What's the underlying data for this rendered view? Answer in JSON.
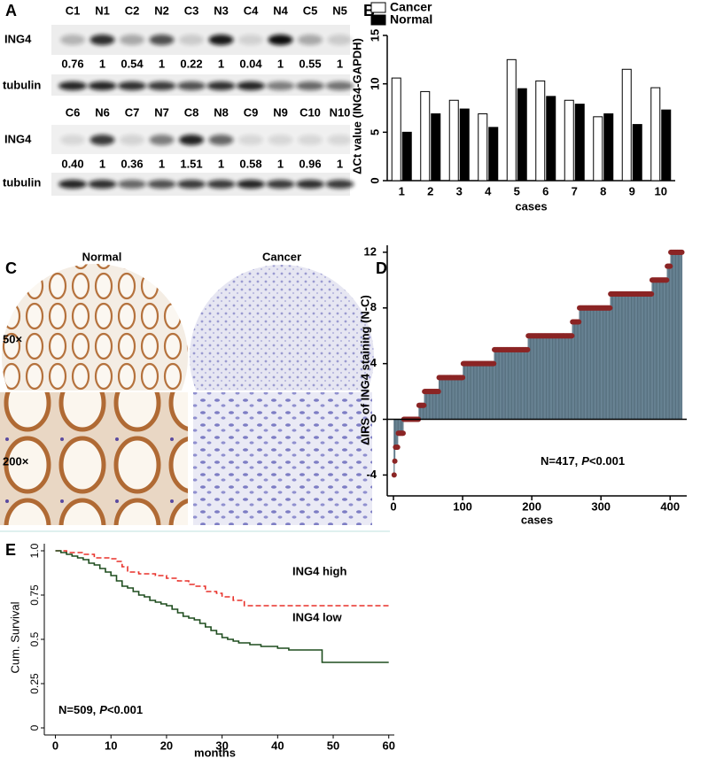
{
  "panel_labels": [
    "A",
    "B",
    "C",
    "D",
    "E"
  ],
  "blot": {
    "row_labels": [
      "ING4",
      "tubulin"
    ],
    "rows": [
      {
        "lanes": [
          "C1",
          "N1",
          "C2",
          "N2",
          "C3",
          "N3",
          "C4",
          "N4",
          "C5",
          "N5"
        ],
        "ratios": [
          "0.76",
          "1",
          "0.54",
          "1",
          "0.22",
          "1",
          "0.04",
          "1",
          "0.55",
          "1"
        ]
      },
      {
        "lanes": [
          "C6",
          "N6",
          "C7",
          "N7",
          "C8",
          "N8",
          "C9",
          "N9",
          "C10",
          "N10"
        ],
        "ratios": [
          "0.40",
          "1",
          "0.36",
          "1",
          "1.51",
          "1",
          "0.58",
          "1",
          "0.96",
          "1"
        ]
      }
    ]
  },
  "ihc": {
    "columns": [
      "Normal",
      "Cancer"
    ],
    "rows": [
      "50×",
      "200×"
    ]
  },
  "chart_data": [
    {
      "type": "bar",
      "ylabel": "ΔCt value (ING4-GAPDH)",
      "xlabel": "cases",
      "categories": [
        "1",
        "2",
        "3",
        "4",
        "5",
        "6",
        "7",
        "8",
        "9",
        "10"
      ],
      "series": [
        {
          "name": "Cancer",
          "color": "#ffffff",
          "values": [
            10.6,
            9.2,
            8.3,
            6.9,
            12.5,
            10.3,
            8.3,
            6.6,
            11.5,
            9.6
          ]
        },
        {
          "name": "Normal",
          "color": "#000000",
          "values": [
            5.0,
            6.9,
            7.4,
            5.5,
            9.5,
            8.7,
            7.9,
            6.9,
            5.8,
            7.3
          ]
        }
      ],
      "ylim": [
        0,
        15
      ],
      "yticks": [
        0,
        5,
        10,
        15
      ],
      "legend": "top-left"
    },
    {
      "type": "stem",
      "ylabel": "ΔIRS of ING4 staining (N-C)",
      "xlabel": "cases",
      "annotation": [
        "N=417,",
        "P",
        "<0.001"
      ],
      "color": "#7f9cae",
      "marker_color": "#8b2525",
      "xlim": [
        -9,
        424
      ],
      "xticks": [
        0,
        100,
        200,
        300,
        400
      ],
      "ylim": [
        -5.5,
        12.5
      ],
      "yticks": [
        -4,
        0,
        4,
        8,
        12
      ],
      "values": [
        -4,
        -3,
        -2,
        -2,
        -2,
        -2,
        -1,
        -1,
        -1,
        -1,
        -1,
        -1,
        -1,
        -1,
        0,
        0,
        0,
        0,
        0,
        0,
        0,
        0,
        0,
        0,
        0,
        0,
        0,
        0,
        0,
        0,
        0,
        0,
        0,
        0,
        0,
        0,
        1,
        1,
        1,
        1,
        1,
        1,
        1,
        1,
        2,
        2,
        2,
        2,
        2,
        2,
        2,
        2,
        2,
        2,
        2,
        2,
        2,
        2,
        2,
        2,
        2,
        2,
        2,
        2,
        2,
        3,
        3,
        3,
        3,
        3,
        3,
        3,
        3,
        3,
        3,
        3,
        3,
        3,
        3,
        3,
        3,
        3,
        3,
        3,
        3,
        3,
        3,
        3,
        3,
        3,
        3,
        3,
        3,
        3,
        3,
        3,
        3,
        3,
        3,
        3,
        4,
        4,
        4,
        4,
        4,
        4,
        4,
        4,
        4,
        4,
        4,
        4,
        4,
        4,
        4,
        4,
        4,
        4,
        4,
        4,
        4,
        4,
        4,
        4,
        4,
        4,
        4,
        4,
        4,
        4,
        4,
        4,
        4,
        4,
        4,
        4,
        4,
        4,
        4,
        4,
        4,
        4,
        4,
        4,
        4,
        5,
        5,
        5,
        5,
        5,
        5,
        5,
        5,
        5,
        5,
        5,
        5,
        5,
        5,
        5,
        5,
        5,
        5,
        5,
        5,
        5,
        5,
        5,
        5,
        5,
        5,
        5,
        5,
        5,
        5,
        5,
        5,
        5,
        5,
        5,
        5,
        5,
        5,
        5,
        5,
        5,
        5,
        5,
        5,
        5,
        5,
        5,
        5,
        5,
        6,
        6,
        6,
        6,
        6,
        6,
        6,
        6,
        6,
        6,
        6,
        6,
        6,
        6,
        6,
        6,
        6,
        6,
        6,
        6,
        6,
        6,
        6,
        6,
        6,
        6,
        6,
        6,
        6,
        6,
        6,
        6,
        6,
        6,
        6,
        6,
        6,
        6,
        6,
        6,
        6,
        6,
        6,
        6,
        6,
        6,
        6,
        6,
        6,
        6,
        6,
        6,
        6,
        6,
        6,
        6,
        6,
        6,
        6,
        6,
        6,
        6,
        6,
        6,
        7,
        7,
        7,
        7,
        7,
        7,
        7,
        7,
        7,
        7,
        8,
        8,
        8,
        8,
        8,
        8,
        8,
        8,
        8,
        8,
        8,
        8,
        8,
        8,
        8,
        8,
        8,
        8,
        8,
        8,
        8,
        8,
        8,
        8,
        8,
        8,
        8,
        8,
        8,
        8,
        8,
        8,
        8,
        8,
        8,
        8,
        8,
        8,
        8,
        8,
        8,
        8,
        8,
        8,
        8,
        9,
        9,
        9,
        9,
        9,
        9,
        9,
        9,
        9,
        9,
        9,
        9,
        9,
        9,
        9,
        9,
        9,
        9,
        9,
        9,
        9,
        9,
        9,
        9,
        9,
        9,
        9,
        9,
        9,
        9,
        9,
        9,
        9,
        9,
        9,
        9,
        9,
        9,
        9,
        9,
        9,
        9,
        9,
        9,
        9,
        9,
        9,
        9,
        9,
        9,
        9,
        9,
        9,
        9,
        9,
        9,
        9,
        9,
        9,
        9,
        10,
        10,
        10,
        10,
        10,
        10,
        10,
        10,
        10,
        10,
        10,
        10,
        10,
        10,
        10,
        10,
        10,
        10,
        10,
        10,
        10,
        10,
        11,
        11,
        11,
        11,
        11,
        12,
        12,
        12,
        12,
        12,
        12,
        12,
        12,
        12,
        12,
        12,
        12,
        12,
        12,
        12,
        12,
        12
      ]
    },
    {
      "type": "line",
      "step": true,
      "ylabel": "Cum. Survival",
      "xlabel": "months",
      "annotation": [
        "N=509,",
        "P",
        "<0.001"
      ],
      "xlim": [
        -2,
        61
      ],
      "xticks": [
        0,
        10,
        20,
        30,
        40,
        50,
        60
      ],
      "ylim": [
        -0.04,
        1.04
      ],
      "yticks": [
        0,
        0.25,
        0.5,
        0.75,
        {
          "value": 1,
          "label": "1.0"
        }
      ],
      "series": [
        {
          "name": "ING4 high",
          "color": "#e8312a",
          "dash": true,
          "x": [
            0,
            2,
            5,
            7,
            10,
            11,
            12,
            13,
            15,
            18,
            20,
            22,
            24,
            25,
            27,
            29,
            30,
            32,
            34,
            60
          ],
          "values": [
            1,
            0.99,
            0.98,
            0.96,
            0.955,
            0.94,
            0.91,
            0.88,
            0.87,
            0.86,
            0.845,
            0.83,
            0.81,
            0.8,
            0.77,
            0.76,
            0.74,
            0.72,
            0.69,
            0.69
          ]
        },
        {
          "name": "ING4 low",
          "color": "#1f4d1f",
          "dash": false,
          "x": [
            0,
            1,
            2,
            3,
            4,
            5,
            6,
            7,
            8,
            9,
            10,
            11,
            12,
            13,
            14,
            15,
            16,
            17,
            18,
            19,
            20,
            21,
            22,
            23,
            24,
            25,
            26,
            27,
            28,
            29,
            30,
            31,
            32,
            33,
            35,
            37,
            40,
            42,
            48,
            60
          ],
          "values": [
            1,
            0.99,
            0.98,
            0.97,
            0.96,
            0.95,
            0.93,
            0.92,
            0.9,
            0.88,
            0.86,
            0.83,
            0.8,
            0.79,
            0.77,
            0.75,
            0.74,
            0.72,
            0.71,
            0.7,
            0.69,
            0.67,
            0.65,
            0.63,
            0.62,
            0.61,
            0.59,
            0.57,
            0.55,
            0.53,
            0.51,
            0.5,
            0.49,
            0.48,
            0.47,
            0.46,
            0.45,
            0.44,
            0.37,
            0.37
          ]
        }
      ]
    }
  ]
}
